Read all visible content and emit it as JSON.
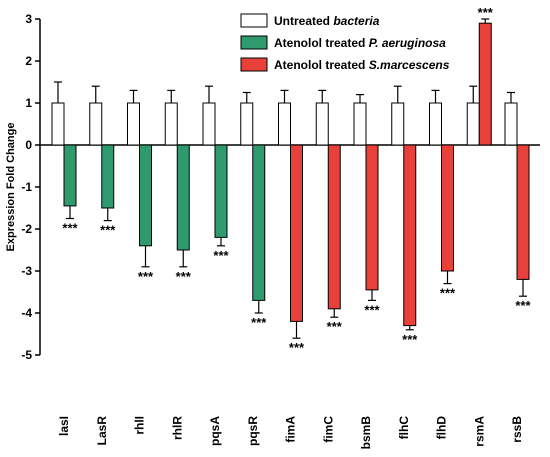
{
  "chart_data": {
    "type": "bar",
    "ylabel": "Expression Fold Change",
    "ylim": [
      -5,
      3
    ],
    "yticks": [
      -5,
      -4,
      -3,
      -2,
      -1,
      0,
      1,
      2,
      3
    ],
    "categories": [
      "lasI",
      "LasR",
      "rhlI",
      "rhlR",
      "pqsA",
      "pqsR",
      "fimA",
      "fimC",
      "bsmB",
      "flhC",
      "flhD",
      "rsmA",
      "rssB"
    ],
    "series": [
      {
        "name": "Untreated bacteria",
        "legend_prefix": "Untreated ",
        "legend_italic": "bacteria",
        "color": "#ffffff",
        "values": [
          1,
          1,
          1,
          1,
          1,
          1,
          1,
          1,
          1,
          1,
          1,
          1,
          1
        ],
        "errors": [
          0.5,
          0.4,
          0.3,
          0.3,
          0.4,
          0.25,
          0.3,
          0.3,
          0.2,
          0.4,
          0.3,
          0.4,
          0.25
        ]
      },
      {
        "name": "Atenolol treated P. aeruginosa",
        "legend_prefix": "Atenolol treated ",
        "legend_italic": "P. aeruginosa",
        "color": "#2e9a6e",
        "values": [
          -1.45,
          -1.5,
          -2.4,
          -2.5,
          -2.2,
          -3.7,
          null,
          null,
          null,
          null,
          null,
          null,
          null
        ],
        "errors": [
          0.3,
          0.3,
          0.5,
          0.4,
          0.2,
          0.3,
          null,
          null,
          null,
          null,
          null,
          null,
          null
        ]
      },
      {
        "name": "Atenolol treated S.marcescens",
        "legend_prefix": "Atenolol treated ",
        "legend_italic": "S.marcescens",
        "color": "#e8403a",
        "values": [
          null,
          null,
          null,
          null,
          null,
          null,
          -4.2,
          -3.9,
          -3.45,
          -4.3,
          -3.0,
          2.9,
          -3.2
        ],
        "errors": [
          null,
          null,
          null,
          null,
          null,
          null,
          0.4,
          0.2,
          0.25,
          0.1,
          0.3,
          0.1,
          0.4
        ]
      }
    ],
    "significance": [
      "***",
      "***",
      "***",
      "***",
      "***",
      "***",
      "***",
      "***",
      "***",
      "***",
      "***",
      "***",
      "***"
    ],
    "legend_position": "top-center",
    "grid": false
  }
}
